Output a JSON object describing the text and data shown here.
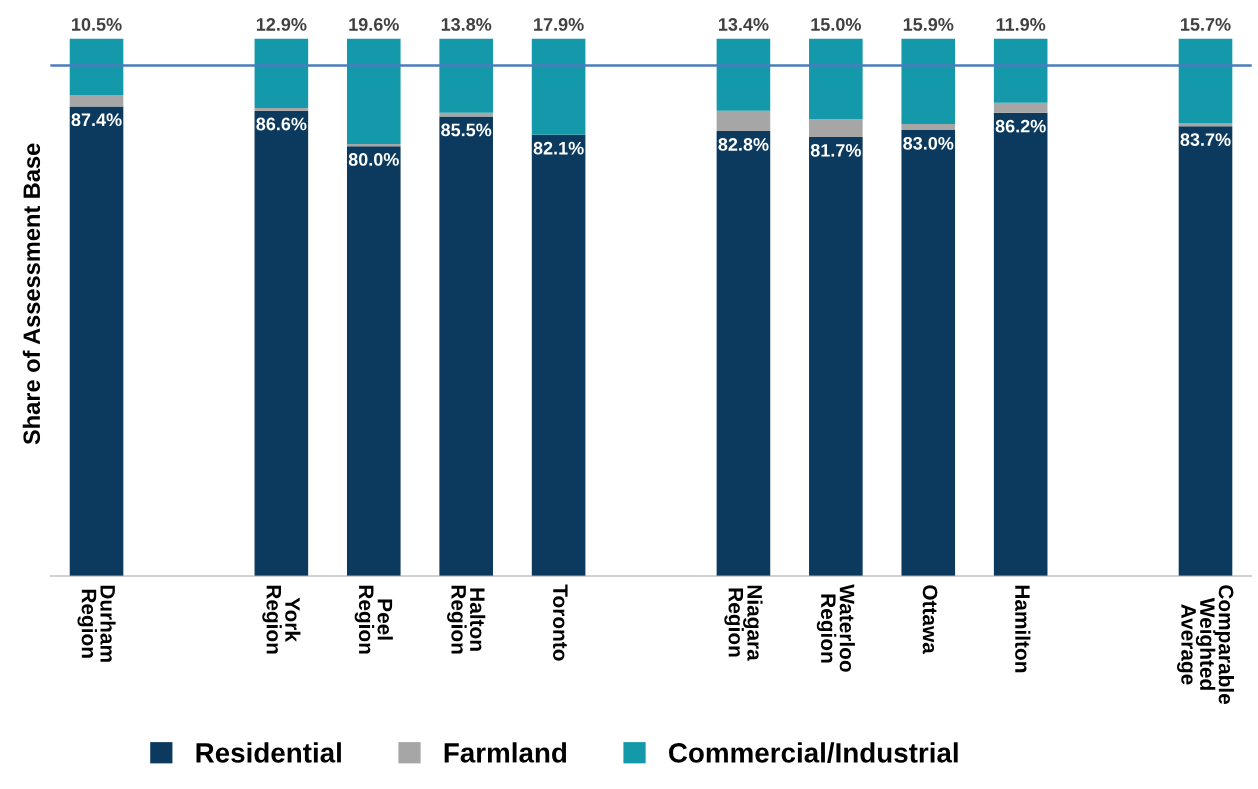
{
  "chart_data": {
    "type": "bar",
    "stacked": true,
    "ylabel": "Share of Assessment Base",
    "categories": [
      "Durham\nRegion",
      null,
      "York\nRegion",
      "Peel\nRegion",
      "Halton\nRegion",
      "Toronto",
      null,
      "Niagara\nRegion",
      "Waterloo\nRegion",
      "Ottawa",
      "Hamilton",
      null,
      "Comparable\nWeighted\nAverage"
    ],
    "series": [
      {
        "name": "Residential",
        "color": "#0b3a5e",
        "values": [
          87.4,
          null,
          86.6,
          80.0,
          85.5,
          82.1,
          null,
          82.8,
          81.7,
          83.0,
          86.2,
          null,
          83.7
        ],
        "value_labels": [
          "87.4%",
          null,
          "86.6%",
          "80.0%",
          "85.5%",
          "82.1%",
          null,
          "82.8%",
          "81.7%",
          "83.0%",
          "86.2%",
          null,
          "83.7%"
        ]
      },
      {
        "name": "Farmland",
        "color": "#a6a6a6",
        "values": [
          2.1,
          null,
          0.5,
          0.4,
          0.7,
          0.0,
          null,
          3.8,
          3.3,
          1.1,
          1.9,
          null,
          0.6
        ]
      },
      {
        "name": "Commercial/Industrial",
        "color": "#1399aa",
        "values": [
          10.5,
          null,
          12.9,
          19.6,
          13.8,
          17.9,
          null,
          13.4,
          15.0,
          15.9,
          11.9,
          null,
          15.7
        ],
        "value_labels": [
          "10.5%",
          null,
          "12.9%",
          "19.6%",
          "13.8%",
          "17.9%",
          null,
          "13.4%",
          "15.0%",
          "15.9%",
          "11.9%",
          null,
          "15.7%"
        ]
      }
    ],
    "tick_labels": "x",
    "grid": false,
    "legend": "bottom",
    "ref_lines": [
      {
        "axis": "y",
        "value": 95,
        "color": "#4a7ebb"
      }
    ]
  }
}
